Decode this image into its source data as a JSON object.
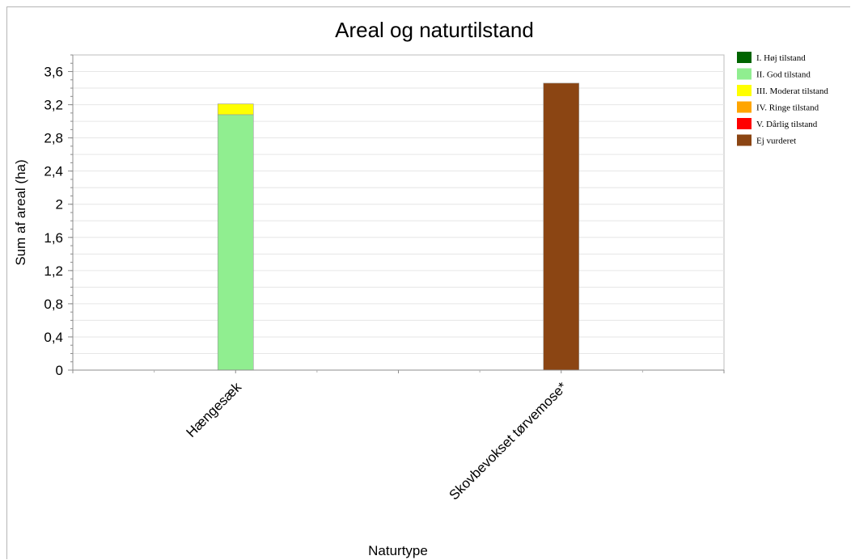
{
  "chart_data": {
    "type": "bar",
    "stacked": true,
    "title": "Areal og naturtilstand",
    "xlabel": "Naturtype",
    "ylabel": "Sum af areal (ha)",
    "ylim": [
      0,
      3.8
    ],
    "yticks": [
      "0",
      "0,4",
      "0,8",
      "1,2",
      "1,6",
      "2",
      "2,4",
      "2,8",
      "3,2",
      "3,6"
    ],
    "yticks_values": [
      0,
      0.4,
      0.8,
      1.2,
      1.6,
      2.0,
      2.4,
      2.8,
      3.2,
      3.6
    ],
    "grid": true,
    "legend_position": "right",
    "categories": [
      "Hængesæk",
      "Skovbevokset tørvemose*"
    ],
    "series": [
      {
        "name": "I. Høj tilstand",
        "color": "#006400",
        "values": [
          0,
          0
        ]
      },
      {
        "name": "II. God tilstand",
        "color": "#90ee90",
        "values": [
          3.08,
          0
        ]
      },
      {
        "name": "III. Moderat tilstand",
        "color": "#ffff00",
        "values": [
          0.13,
          0
        ]
      },
      {
        "name": "IV. Ringe tilstand",
        "color": "#ffa500",
        "values": [
          0,
          0
        ]
      },
      {
        "name": "V. Dårlig tilstand",
        "color": "#ff0000",
        "values": [
          0,
          0
        ]
      },
      {
        "name": "Ej vurderet",
        "color": "#8b4513",
        "values": [
          0,
          3.46
        ]
      }
    ]
  }
}
